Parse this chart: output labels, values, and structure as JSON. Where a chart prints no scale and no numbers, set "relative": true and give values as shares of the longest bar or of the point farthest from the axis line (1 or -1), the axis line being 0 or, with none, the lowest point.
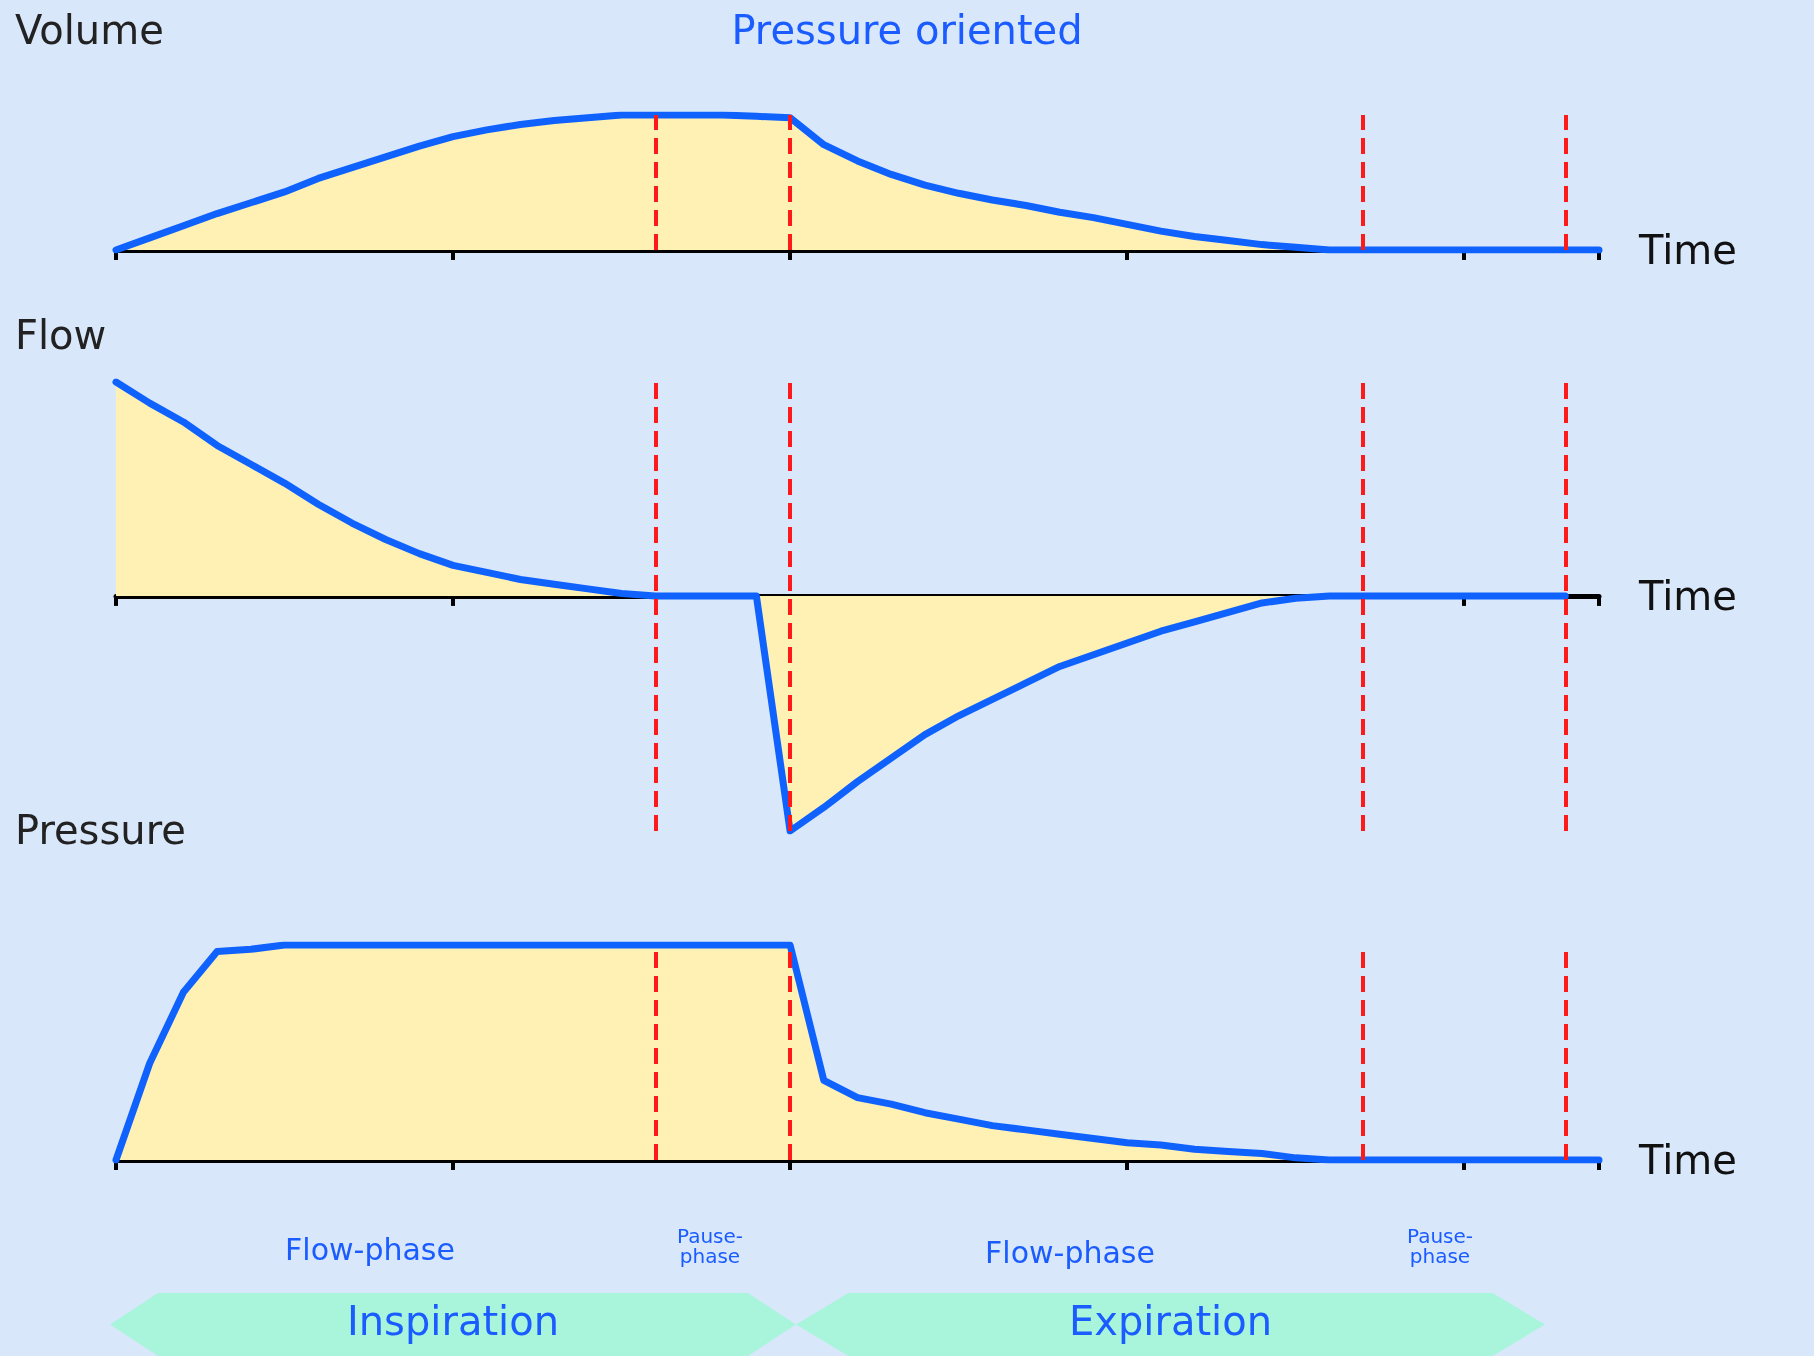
{
  "chart_data": [
    {
      "type": "area",
      "title": "Pressure oriented",
      "ylabel": "Volume",
      "xlabel": "Time",
      "relative": true,
      "grid": "x",
      "marker": "none",
      "line_style": "solid",
      "categories": [
        null,
        null,
        null,
        null,
        null,
        null,
        null,
        null,
        null,
        null,
        null,
        null,
        null,
        null,
        null,
        null,
        null,
        null,
        null,
        null,
        null,
        null,
        null,
        null,
        null,
        null,
        null,
        null,
        null,
        null,
        null,
        null,
        null,
        null,
        null,
        null,
        null,
        null,
        null,
        null,
        null,
        null,
        null,
        null,
        null
      ],
      "series": [
        {
          "color": "#fff0b3",
          "values": [
            0,
            0.09,
            0.18,
            0.27,
            0.35,
            0.43,
            0.53,
            0.61,
            0.69,
            0.77,
            0.84,
            0.89,
            0.93,
            0.96,
            0.98,
            1,
            1,
            1,
            1,
            0.99,
            0.98,
            0.78,
            0.66,
            0.56,
            0.48,
            0.42,
            0.37,
            0.33,
            0.28,
            0.24,
            0.19,
            0.14,
            0.1,
            0.07,
            0.04,
            0.02,
            0,
            0,
            0,
            0,
            0,
            0,
            0,
            0,
            0
          ]
        }
      ]
    },
    {
      "type": "area",
      "ylabel": "Flow",
      "xlabel": "Time",
      "relative": true,
      "grid": "x",
      "marker": "none",
      "line_style": "solid",
      "categories": [
        null,
        null,
        null,
        null,
        null,
        null,
        null,
        null,
        null,
        null,
        null,
        null,
        null,
        null,
        null,
        null,
        null,
        null,
        null,
        null,
        null,
        null,
        null,
        null,
        null,
        null,
        null,
        null,
        null,
        null,
        null,
        null,
        null,
        null,
        null,
        null,
        null,
        null,
        null,
        null,
        null,
        null,
        null,
        null,
        null
      ],
      "series": [
        {
          "color": "#fff0b3",
          "values": [
            0.91,
            0.82,
            0.74,
            0.64,
            0.56,
            0.48,
            0.39,
            0.31,
            0.24,
            0.18,
            0.13,
            0.1,
            0.07,
            0.05,
            0.03,
            0.01,
            0,
            0,
            0,
            0,
            -1,
            -0.9,
            -0.79,
            -0.69,
            -0.59,
            -0.51,
            -0.44,
            -0.37,
            -0.3,
            -0.25,
            -0.2,
            -0.15,
            -0.11,
            -0.07,
            -0.03,
            -0.01,
            0,
            0,
            0,
            0,
            0,
            0,
            0,
            0,
            null
          ]
        }
      ]
    },
    {
      "type": "area",
      "ylabel": "Pressure",
      "xlabel": "Time",
      "relative": true,
      "grid": "x",
      "marker": "none",
      "line_style": "solid",
      "categories": [
        null,
        null,
        null,
        null,
        null,
        null,
        null,
        null,
        null,
        null,
        null,
        null,
        null,
        null,
        null,
        null,
        null,
        null,
        null,
        null,
        null,
        null,
        null,
        null,
        null,
        null,
        null,
        null,
        null,
        null,
        null,
        null,
        null,
        null,
        null,
        null,
        null,
        null,
        null,
        null,
        null,
        null,
        null,
        null,
        null
      ],
      "series": [
        {
          "color": "#fff0b3",
          "values": [
            0,
            0.45,
            0.78,
            0.97,
            0.98,
            1,
            1,
            1,
            1,
            1,
            1,
            1,
            1,
            1,
            1,
            1,
            1,
            1,
            1,
            1,
            1,
            0.37,
            0.29,
            0.26,
            0.22,
            0.19,
            0.16,
            0.14,
            0.12,
            0.1,
            0.08,
            0.07,
            0.05,
            0.04,
            0.03,
            0.01,
            0,
            0,
            0,
            0,
            0,
            0,
            0,
            0,
            0
          ]
        }
      ],
      "annotations": [
        "Flow-phase",
        "Pause-phase",
        "Flow-phase",
        "Pause-phase",
        "Inspiration",
        "Expiration"
      ]
    }
  ]
}
